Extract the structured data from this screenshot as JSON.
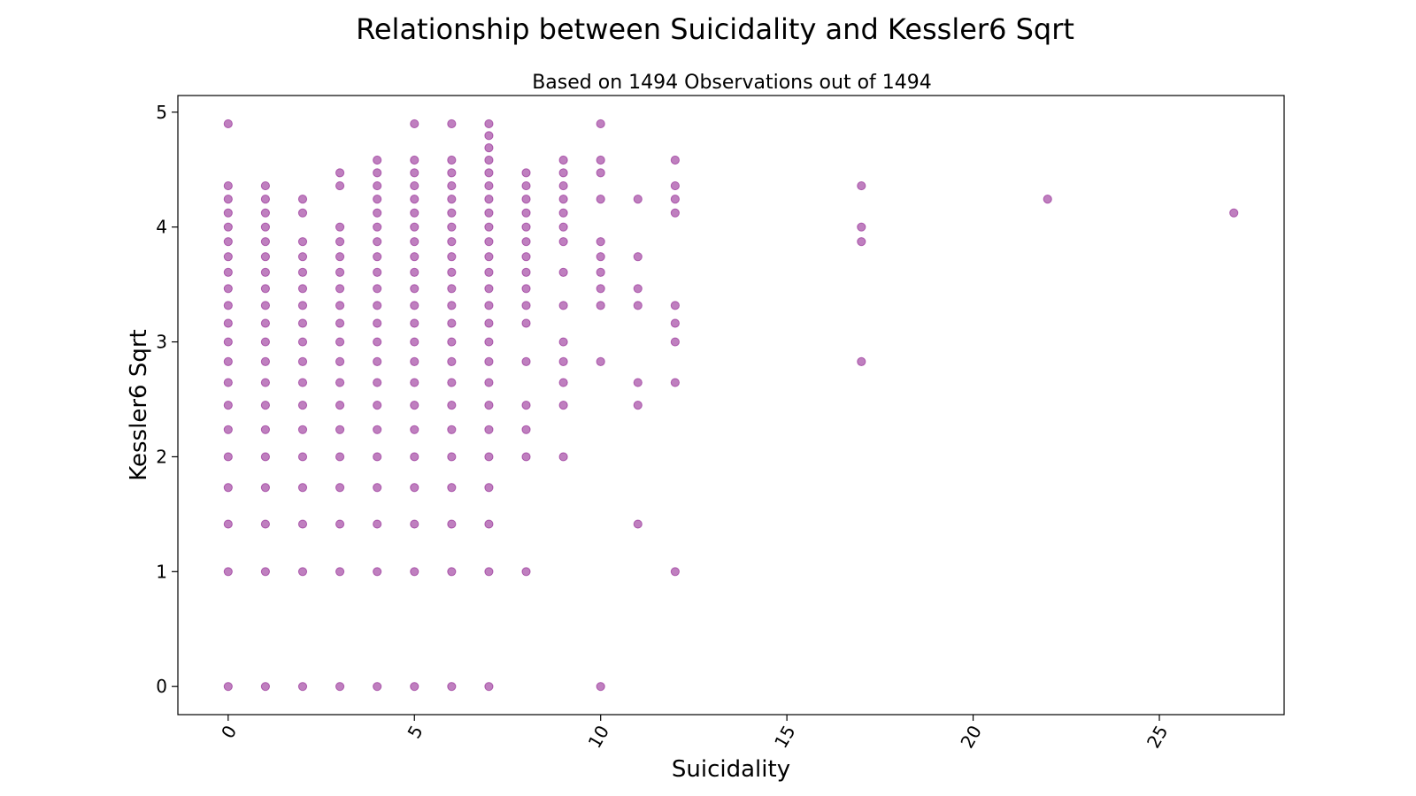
{
  "chart_data": {
    "type": "scatter",
    "title": "Relationship between Suicidality and Kessler6 Sqrt",
    "subtitle": "Based on 1494 Observations out of 1494",
    "xlabel": "Suicidality",
    "ylabel": "Kessler6 Sqrt",
    "xlim": [
      -1.35,
      28.35
    ],
    "ylim": [
      -0.245,
      5.145
    ],
    "xticks": [
      0,
      5,
      10,
      15,
      20,
      25
    ],
    "xtick_labels": [
      "0",
      "5",
      "10",
      "15",
      "20",
      "25"
    ],
    "yticks": [
      0,
      1,
      2,
      3,
      4,
      5
    ],
    "ytick_labels": [
      "0",
      "1",
      "2",
      "3",
      "4",
      "5"
    ],
    "xtick_rotation": -60,
    "grid": false,
    "legend": "none",
    "marker_color": "#800080",
    "marker_alpha": 0.5,
    "points": [
      [
        0,
        0
      ],
      [
        0,
        1
      ],
      [
        0,
        1.414
      ],
      [
        0,
        1.732
      ],
      [
        0,
        2
      ],
      [
        0,
        2.236
      ],
      [
        0,
        2.449
      ],
      [
        0,
        2.646
      ],
      [
        0,
        2.828
      ],
      [
        0,
        3
      ],
      [
        0,
        3.162
      ],
      [
        0,
        3.317
      ],
      [
        0,
        3.464
      ],
      [
        0,
        3.606
      ],
      [
        0,
        3.742
      ],
      [
        0,
        3.873
      ],
      [
        0,
        4
      ],
      [
        0,
        4.123
      ],
      [
        0,
        4.243
      ],
      [
        0,
        4.359
      ],
      [
        0,
        4.899
      ],
      [
        1,
        0
      ],
      [
        1,
        1
      ],
      [
        1,
        1.414
      ],
      [
        1,
        1.732
      ],
      [
        1,
        2
      ],
      [
        1,
        2.236
      ],
      [
        1,
        2.449
      ],
      [
        1,
        2.646
      ],
      [
        1,
        2.828
      ],
      [
        1,
        3
      ],
      [
        1,
        3.162
      ],
      [
        1,
        3.317
      ],
      [
        1,
        3.464
      ],
      [
        1,
        3.606
      ],
      [
        1,
        3.742
      ],
      [
        1,
        3.873
      ],
      [
        1,
        4
      ],
      [
        1,
        4.123
      ],
      [
        1,
        4.243
      ],
      [
        1,
        4.359
      ],
      [
        2,
        0
      ],
      [
        2,
        1
      ],
      [
        2,
        1.414
      ],
      [
        2,
        1.732
      ],
      [
        2,
        2
      ],
      [
        2,
        2.236
      ],
      [
        2,
        2.449
      ],
      [
        2,
        2.646
      ],
      [
        2,
        2.828
      ],
      [
        2,
        3
      ],
      [
        2,
        3.162
      ],
      [
        2,
        3.317
      ],
      [
        2,
        3.464
      ],
      [
        2,
        3.606
      ],
      [
        2,
        3.742
      ],
      [
        2,
        3.873
      ],
      [
        2,
        4.123
      ],
      [
        2,
        4.243
      ],
      [
        3,
        0
      ],
      [
        3,
        1
      ],
      [
        3,
        1.414
      ],
      [
        3,
        1.732
      ],
      [
        3,
        2
      ],
      [
        3,
        2.236
      ],
      [
        3,
        2.449
      ],
      [
        3,
        2.646
      ],
      [
        3,
        2.828
      ],
      [
        3,
        3
      ],
      [
        3,
        3.162
      ],
      [
        3,
        3.317
      ],
      [
        3,
        3.464
      ],
      [
        3,
        3.606
      ],
      [
        3,
        3.742
      ],
      [
        3,
        3.873
      ],
      [
        3,
        4
      ],
      [
        3,
        4.359
      ],
      [
        3,
        4.472
      ],
      [
        4,
        0
      ],
      [
        4,
        1
      ],
      [
        4,
        1.414
      ],
      [
        4,
        1.732
      ],
      [
        4,
        2
      ],
      [
        4,
        2.236
      ],
      [
        4,
        2.449
      ],
      [
        4,
        2.646
      ],
      [
        4,
        2.828
      ],
      [
        4,
        3
      ],
      [
        4,
        3.162
      ],
      [
        4,
        3.317
      ],
      [
        4,
        3.464
      ],
      [
        4,
        3.606
      ],
      [
        4,
        3.742
      ],
      [
        4,
        3.873
      ],
      [
        4,
        4
      ],
      [
        4,
        4.123
      ],
      [
        4,
        4.243
      ],
      [
        4,
        4.359
      ],
      [
        4,
        4.472
      ],
      [
        4,
        4.583
      ],
      [
        5,
        0
      ],
      [
        5,
        1
      ],
      [
        5,
        1.414
      ],
      [
        5,
        1.732
      ],
      [
        5,
        2
      ],
      [
        5,
        2.236
      ],
      [
        5,
        2.449
      ],
      [
        5,
        2.646
      ],
      [
        5,
        2.828
      ],
      [
        5,
        3
      ],
      [
        5,
        3.162
      ],
      [
        5,
        3.317
      ],
      [
        5,
        3.464
      ],
      [
        5,
        3.606
      ],
      [
        5,
        3.742
      ],
      [
        5,
        3.873
      ],
      [
        5,
        4
      ],
      [
        5,
        4.123
      ],
      [
        5,
        4.243
      ],
      [
        5,
        4.359
      ],
      [
        5,
        4.472
      ],
      [
        5,
        4.583
      ],
      [
        5,
        4.899
      ],
      [
        6,
        0
      ],
      [
        6,
        1
      ],
      [
        6,
        1.414
      ],
      [
        6,
        1.732
      ],
      [
        6,
        2
      ],
      [
        6,
        2.236
      ],
      [
        6,
        2.449
      ],
      [
        6,
        2.646
      ],
      [
        6,
        2.828
      ],
      [
        6,
        3
      ],
      [
        6,
        3.162
      ],
      [
        6,
        3.317
      ],
      [
        6,
        3.464
      ],
      [
        6,
        3.606
      ],
      [
        6,
        3.742
      ],
      [
        6,
        3.873
      ],
      [
        6,
        4
      ],
      [
        6,
        4.123
      ],
      [
        6,
        4.243
      ],
      [
        6,
        4.359
      ],
      [
        6,
        4.472
      ],
      [
        6,
        4.583
      ],
      [
        6,
        4.899
      ],
      [
        7,
        0
      ],
      [
        7,
        1
      ],
      [
        7,
        1.414
      ],
      [
        7,
        1.732
      ],
      [
        7,
        2
      ],
      [
        7,
        2.236
      ],
      [
        7,
        2.449
      ],
      [
        7,
        2.646
      ],
      [
        7,
        2.828
      ],
      [
        7,
        3
      ],
      [
        7,
        3.162
      ],
      [
        7,
        3.317
      ],
      [
        7,
        3.464
      ],
      [
        7,
        3.606
      ],
      [
        7,
        3.742
      ],
      [
        7,
        3.873
      ],
      [
        7,
        4
      ],
      [
        7,
        4.123
      ],
      [
        7,
        4.243
      ],
      [
        7,
        4.359
      ],
      [
        7,
        4.472
      ],
      [
        7,
        4.583
      ],
      [
        7,
        4.69
      ],
      [
        7,
        4.796
      ],
      [
        7,
        4.899
      ],
      [
        8,
        1
      ],
      [
        8,
        2
      ],
      [
        8,
        2.236
      ],
      [
        8,
        2.449
      ],
      [
        8,
        2.828
      ],
      [
        8,
        3.162
      ],
      [
        8,
        3.317
      ],
      [
        8,
        3.464
      ],
      [
        8,
        3.606
      ],
      [
        8,
        3.742
      ],
      [
        8,
        3.873
      ],
      [
        8,
        4
      ],
      [
        8,
        4.123
      ],
      [
        8,
        4.243
      ],
      [
        8,
        4.359
      ],
      [
        8,
        4.472
      ],
      [
        9,
        2
      ],
      [
        9,
        2.449
      ],
      [
        9,
        2.646
      ],
      [
        9,
        2.828
      ],
      [
        9,
        3
      ],
      [
        9,
        3.317
      ],
      [
        9,
        3.606
      ],
      [
        9,
        3.873
      ],
      [
        9,
        4
      ],
      [
        9,
        4.123
      ],
      [
        9,
        4.243
      ],
      [
        9,
        4.359
      ],
      [
        9,
        4.472
      ],
      [
        9,
        4.583
      ],
      [
        10,
        0
      ],
      [
        10,
        2.828
      ],
      [
        10,
        3.317
      ],
      [
        10,
        3.464
      ],
      [
        10,
        3.606
      ],
      [
        10,
        3.742
      ],
      [
        10,
        3.873
      ],
      [
        10,
        4.243
      ],
      [
        10,
        4.472
      ],
      [
        10,
        4.583
      ],
      [
        10,
        4.899
      ],
      [
        11,
        1.414
      ],
      [
        11,
        2.449
      ],
      [
        11,
        2.646
      ],
      [
        11,
        3.317
      ],
      [
        11,
        3.464
      ],
      [
        11,
        3.742
      ],
      [
        11,
        4.243
      ],
      [
        12,
        1
      ],
      [
        12,
        2.646
      ],
      [
        12,
        3
      ],
      [
        12,
        3.162
      ],
      [
        12,
        3.317
      ],
      [
        12,
        4.123
      ],
      [
        12,
        4.243
      ],
      [
        12,
        4.359
      ],
      [
        12,
        4.583
      ],
      [
        17,
        2.828
      ],
      [
        17,
        3.873
      ],
      [
        17,
        4
      ],
      [
        17,
        4.359
      ],
      [
        22,
        4.243
      ],
      [
        27,
        4.123
      ]
    ]
  }
}
